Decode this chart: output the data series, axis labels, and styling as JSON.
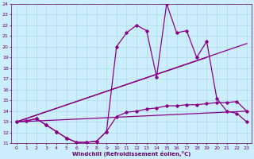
{
  "xlabel": "Windchill (Refroidissement éolien,°C)",
  "background_color": "#cceeff",
  "grid_color": "#aadddd",
  "line_color": "#880088",
  "xlim": [
    -0.5,
    23.5
  ],
  "ylim": [
    11,
    24
  ],
  "yticks": [
    11,
    12,
    13,
    14,
    15,
    16,
    17,
    18,
    19,
    20,
    21,
    22,
    23,
    24
  ],
  "xticks": [
    0,
    1,
    2,
    3,
    4,
    5,
    6,
    7,
    8,
    9,
    10,
    11,
    12,
    13,
    14,
    15,
    16,
    17,
    18,
    19,
    20,
    21,
    22,
    23
  ],
  "curve1_x": [
    0,
    1,
    2,
    3,
    4,
    5,
    6,
    7,
    8,
    9,
    10,
    11,
    12,
    13,
    14,
    15,
    16,
    17,
    18,
    19,
    20,
    21,
    22,
    23
  ],
  "curve1_y": [
    13.0,
    13.1,
    13.3,
    12.7,
    12.1,
    11.5,
    11.1,
    11.1,
    11.2,
    12.1,
    13.5,
    13.9,
    14.0,
    14.2,
    14.3,
    14.5,
    14.5,
    14.6,
    14.6,
    14.7,
    14.8,
    14.8,
    14.9,
    14.0
  ],
  "curve2_x": [
    0,
    1,
    2,
    3,
    4,
    5,
    6,
    7,
    8,
    9,
    10,
    11,
    12,
    13,
    14,
    15,
    16,
    17,
    18,
    19,
    20,
    21,
    22,
    23
  ],
  "curve2_y": [
    13.0,
    13.1,
    13.3,
    12.7,
    12.1,
    11.5,
    11.1,
    11.1,
    11.2,
    12.1,
    20.0,
    21.3,
    22.0,
    21.5,
    17.2,
    24.0,
    21.3,
    21.5,
    19.0,
    20.5,
    15.2,
    14.0,
    13.8,
    13.0
  ],
  "line3_x": [
    0,
    23
  ],
  "line3_y": [
    13.0,
    14.0
  ],
  "line4_x": [
    0,
    19
  ],
  "line4_y": [
    13.0,
    19.0
  ],
  "line5_x": [
    0,
    23
  ],
  "line5_y": [
    13.0,
    20.3
  ]
}
